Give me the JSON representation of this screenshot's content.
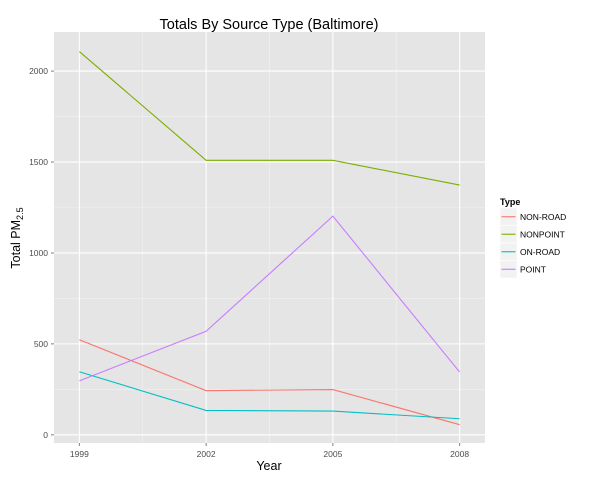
{
  "chart_data": {
    "type": "line",
    "title": "Totals By Source Type (Baltimore)",
    "xlabel": "Year",
    "ylabel_main": "Total PM",
    "ylabel_sub": "2.5",
    "x": [
      1999,
      2002,
      2005,
      2008
    ],
    "x_ticks": [
      "1999",
      "2002",
      "2005",
      "2008"
    ],
    "y_ticks": [
      0,
      500,
      1000,
      1500,
      2000
    ],
    "y_tick_labels": [
      "0",
      "500",
      "1000",
      "1500",
      "2000"
    ],
    "xlim": [
      1998.4,
      2008.6
    ],
    "ylim": [
      -45,
      2215
    ],
    "grid": true,
    "legend_position": "right",
    "legend_title": "Type",
    "series": [
      {
        "name": "NON-ROAD",
        "color": "#F8766D",
        "values": [
          522.9,
          242.8,
          248.9,
          55.8
        ]
      },
      {
        "name": "NONPOINT",
        "color": "#7CAE00",
        "values": [
          2107.6,
          1509.5,
          1509.5,
          1373.2
        ]
      },
      {
        "name": "ON-ROAD",
        "color": "#00BFC4",
        "values": [
          346.8,
          134.3,
          130.4,
          88.3
        ]
      },
      {
        "name": "POINT",
        "color": "#C77CFF",
        "values": [
          296.8,
          569.3,
          1202.5,
          344.98
        ]
      }
    ]
  }
}
